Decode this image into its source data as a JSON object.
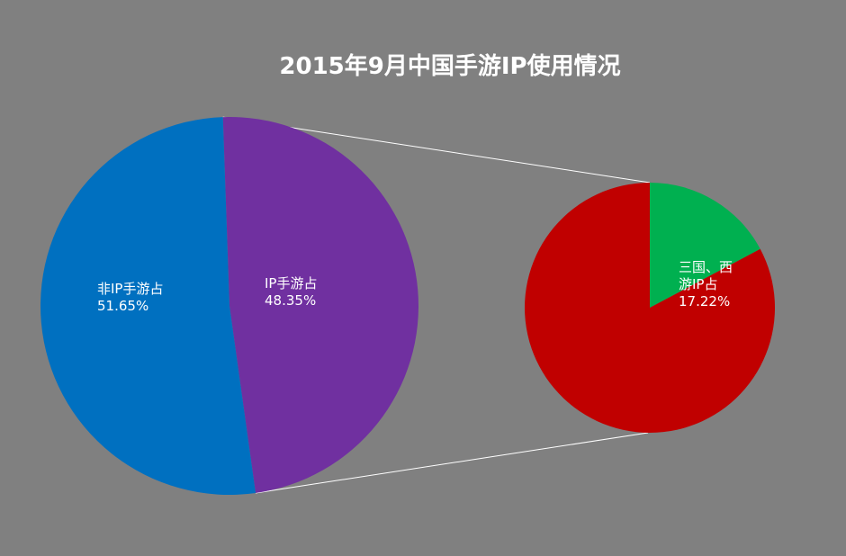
{
  "chart_data": {
    "type": "pie",
    "title": "2015年9月中国手游IP使用情况",
    "main_pie": {
      "slices": [
        {
          "label": "IP手游占",
          "value": 48.35,
          "value_label": "48.35%",
          "color": "#7030A0"
        },
        {
          "label": "非IP手游占",
          "value": 51.65,
          "value_label": "51.65%",
          "color": "#0070C0"
        }
      ]
    },
    "detail_pie": {
      "parent_slice": "IP手游占",
      "slices": [
        {
          "label_lines": [
            "三国、西",
            "游IP占"
          ],
          "value": 17.22,
          "value_label": "17.22%",
          "color": "#00B050"
        },
        {
          "label_lines": [],
          "value": 82.78,
          "value_label": "",
          "color": "#C00000"
        }
      ]
    }
  }
}
